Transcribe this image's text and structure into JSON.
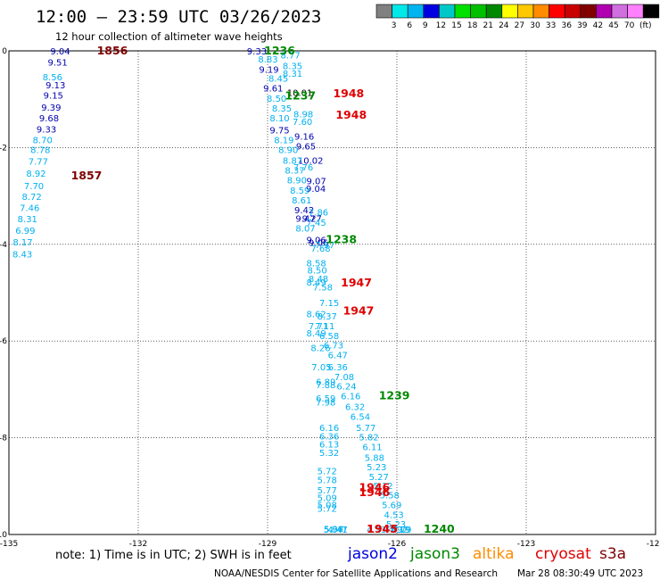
{
  "header": {
    "title": "12:00 — 23:59 UTC 03/26/2023",
    "subtitle": "12 hour collection of altimeter wave heights"
  },
  "colorbar": {
    "unit": "(ft)",
    "labels": [
      "3",
      "6",
      "9",
      "12",
      "15",
      "18",
      "21",
      "24",
      "27",
      "30",
      "33",
      "36",
      "39",
      "42",
      "45",
      "70"
    ],
    "colors": [
      "#808080",
      "#00e8e8",
      "#00b4f0",
      "#0000e0",
      "#00c8c8",
      "#00e000",
      "#00c000",
      "#008800",
      "#ffff00",
      "#ffc800",
      "#ff8c00",
      "#ff0000",
      "#c80000",
      "#800000",
      "#b000b0",
      "#d070e0",
      "#ff80ff",
      "#000000"
    ]
  },
  "chart_data": {
    "type": "scatter",
    "xlabel": "",
    "ylabel": "",
    "xlim": [
      -135,
      -120
    ],
    "ylim": [
      -10,
      0
    ],
    "x_ticks": [
      "-135",
      "-132",
      "-129",
      "-126",
      "-123",
      "-120"
    ],
    "y_ticks": [
      "0",
      "-2",
      "-4",
      "-6",
      "-8",
      "-10"
    ],
    "grid": true,
    "series": [
      {
        "name": "jason2",
        "points": [
          {
            "x": -134.04,
            "y": -0.0,
            "label": "9.04",
            "color": "#0000b0"
          },
          {
            "x": -134.1,
            "y": -0.25,
            "label": "9.51",
            "color": "#0000b0"
          },
          {
            "x": -134.15,
            "y": -0.72,
            "label": "9.13",
            "color": "#0000b0"
          },
          {
            "x": -134.2,
            "y": -0.93,
            "label": "9.15",
            "color": "#0000b0"
          },
          {
            "x": -134.25,
            "y": -1.18,
            "label": "9.39",
            "color": "#0000b0"
          },
          {
            "x": -134.3,
            "y": -1.4,
            "label": "9.68",
            "color": "#0000b0"
          },
          {
            "x": -134.36,
            "y": -1.63,
            "label": "9.33",
            "color": "#0000b0"
          },
          {
            "x": -129.48,
            "y": -0.0,
            "label": "9.33",
            "color": "#0000b0"
          },
          {
            "x": -129.2,
            "y": -0.4,
            "label": "9.19",
            "color": "#0000b0"
          },
          {
            "x": -129.1,
            "y": -0.78,
            "label": "9.61",
            "color": "#0000b0"
          },
          {
            "x": -128.95,
            "y": -1.65,
            "label": "9.75",
            "color": "#0000b0"
          },
          {
            "x": -128.38,
            "y": -1.78,
            "label": "9.16",
            "color": "#0000b0"
          },
          {
            "x": -128.34,
            "y": -1.98,
            "label": "9.65",
            "color": "#0000b0"
          },
          {
            "x": -128.3,
            "y": -2.28,
            "label": "10.02",
            "color": "#0000b0"
          },
          {
            "x": -128.1,
            "y": -2.7,
            "label": "9.07",
            "color": "#0000b0"
          },
          {
            "x": -128.11,
            "y": -2.86,
            "label": "9.04",
            "color": "#0000b0"
          },
          {
            "x": -128.38,
            "y": -3.3,
            "label": "9.42",
            "color": "#0000b0"
          },
          {
            "x": -128.35,
            "y": -3.48,
            "label": "9.47",
            "color": "#0000b0"
          },
          {
            "x": -128.2,
            "y": -3.48,
            "label": "9.27",
            "color": "#0000b0"
          },
          {
            "x": -128.1,
            "y": -3.92,
            "label": "9.06",
            "color": "#0000b0"
          },
          {
            "x": -128.05,
            "y": -3.98,
            "label": "9.06",
            "color": "#0000b0"
          },
          {
            "x": -128.55,
            "y": -0.88,
            "label": "10.01",
            "color": "#000000"
          }
        ]
      },
      {
        "name": "jason3",
        "points": [
          {
            "x": -134.22,
            "y": -0.55,
            "label": "8.56",
            "color": "#00b0f0"
          },
          {
            "x": -134.45,
            "y": -1.85,
            "label": "8.70",
            "color": "#00b0f0"
          },
          {
            "x": -134.5,
            "y": -2.06,
            "label": "8.78",
            "color": "#00b0f0"
          },
          {
            "x": -134.55,
            "y": -2.3,
            "label": "7.77",
            "color": "#00b0f0"
          },
          {
            "x": -134.6,
            "y": -2.55,
            "label": "8.92",
            "color": "#00b0f0"
          },
          {
            "x": -134.65,
            "y": -2.8,
            "label": "7.70",
            "color": "#00b0f0"
          },
          {
            "x": -134.7,
            "y": -3.03,
            "label": "8.72",
            "color": "#00b0f0"
          },
          {
            "x": -134.75,
            "y": -3.26,
            "label": "7.46",
            "color": "#00b0f0"
          },
          {
            "x": -134.8,
            "y": -3.49,
            "label": "8.31",
            "color": "#00b0f0"
          },
          {
            "x": -134.85,
            "y": -3.73,
            "label": "6.99",
            "color": "#00b0f0"
          },
          {
            "x": -134.91,
            "y": -3.97,
            "label": "8.17",
            "color": "#00b0f0"
          },
          {
            "x": -134.95,
            "y": -4.22,
            "label": "8.43",
            "color": "#00b0f0"
          },
          {
            "x": -129.22,
            "y": -0.18,
            "label": "8.83",
            "color": "#00b0f0"
          },
          {
            "x": -128.98,
            "y": -0.58,
            "label": "8.45",
            "color": "#00b0f0"
          },
          {
            "x": -129.02,
            "y": -1.0,
            "label": "8.50",
            "color": "#00b0f0"
          },
          {
            "x": -128.9,
            "y": -1.2,
            "label": "8.35",
            "color": "#00b0f0"
          },
          {
            "x": -128.95,
            "y": -1.4,
            "label": "8.10",
            "color": "#00b0f0"
          },
          {
            "x": -128.85,
            "y": -1.85,
            "label": "8.19",
            "color": "#00b0f0"
          },
          {
            "x": -128.75,
            "y": -2.06,
            "label": "8.90",
            "color": "#00b0f0"
          },
          {
            "x": -128.65,
            "y": -2.28,
            "label": "8.87",
            "color": "#00b0f0"
          },
          {
            "x": -128.6,
            "y": -2.48,
            "label": "8.37",
            "color": "#00b0f0"
          },
          {
            "x": -128.4,
            "y": -2.42,
            "label": "7.76",
            "color": "#00b0f0"
          },
          {
            "x": -128.55,
            "y": -2.68,
            "label": "8.90",
            "color": "#00b0f0"
          },
          {
            "x": -128.48,
            "y": -2.9,
            "label": "8.59",
            "color": "#00b0f0"
          },
          {
            "x": -128.44,
            "y": -3.1,
            "label": "8.61",
            "color": "#00b0f0"
          },
          {
            "x": -128.05,
            "y": -3.35,
            "label": "7.86",
            "color": "#00b0f0"
          },
          {
            "x": -128.1,
            "y": -3.56,
            "label": "7.45",
            "color": "#00b0f0"
          },
          {
            "x": -128.35,
            "y": -3.68,
            "label": "8.07",
            "color": "#00b0f0"
          },
          {
            "x": -127.9,
            "y": -4.02,
            "label": "7.97",
            "color": "#00b0f0"
          },
          {
            "x": -128.0,
            "y": -4.1,
            "label": "7.68",
            "color": "#00b0f0"
          },
          {
            "x": -128.1,
            "y": -4.4,
            "label": "8.58",
            "color": "#00b0f0"
          },
          {
            "x": -128.08,
            "y": -4.55,
            "label": "8.50",
            "color": "#00b0f0"
          },
          {
            "x": -128.05,
            "y": -4.72,
            "label": "8.48",
            "color": "#00b0f0"
          },
          {
            "x": -128.1,
            "y": -4.8,
            "label": "8.49",
            "color": "#00b0f0"
          },
          {
            "x": -127.95,
            "y": -4.9,
            "label": "7.58",
            "color": "#00b0f0"
          },
          {
            "x": -127.8,
            "y": -5.22,
            "label": "7.15",
            "color": "#00b0f0"
          },
          {
            "x": -128.1,
            "y": -5.45,
            "label": "8.62",
            "color": "#00b0f0"
          },
          {
            "x": -127.85,
            "y": -5.5,
            "label": "8.37",
            "color": "#00b0f0"
          },
          {
            "x": -128.05,
            "y": -5.7,
            "label": "7.71",
            "color": "#00b0f0"
          },
          {
            "x": -127.9,
            "y": -5.7,
            "label": "7.11",
            "color": "#00b0f0"
          },
          {
            "x": -128.1,
            "y": -5.85,
            "label": "8.49",
            "color": "#00b0f0"
          },
          {
            "x": -127.8,
            "y": -5.9,
            "label": "6.58",
            "color": "#00b0f0"
          },
          {
            "x": -127.7,
            "y": -6.1,
            "label": "6.73",
            "color": "#00b0f0"
          },
          {
            "x": -128.0,
            "y": -6.15,
            "label": "8.26",
            "color": "#00b0f0"
          },
          {
            "x": -127.6,
            "y": -6.3,
            "label": "6.47",
            "color": "#00b0f0"
          },
          {
            "x": -127.98,
            "y": -6.55,
            "label": "7.05",
            "color": "#00b0f0"
          },
          {
            "x": -127.6,
            "y": -6.55,
            "label": "6.36",
            "color": "#00b0f0"
          },
          {
            "x": -127.45,
            "y": -6.75,
            "label": "7.08",
            "color": "#00b0f0"
          },
          {
            "x": -127.88,
            "y": -6.85,
            "label": "6.89",
            "color": "#00b0f0"
          },
          {
            "x": -127.88,
            "y": -6.92,
            "label": "7.88",
            "color": "#00b0f0"
          },
          {
            "x": -127.4,
            "y": -6.95,
            "label": "6.24",
            "color": "#00b0f0"
          },
          {
            "x": -127.88,
            "y": -7.2,
            "label": "6.59",
            "color": "#00b0f0"
          },
          {
            "x": -127.88,
            "y": -7.28,
            "label": "7.98",
            "color": "#00b0f0"
          },
          {
            "x": -127.3,
            "y": -7.15,
            "label": "6.16",
            "color": "#00b0f0"
          },
          {
            "x": -127.2,
            "y": -7.37,
            "label": "6.32",
            "color": "#00b0f0"
          },
          {
            "x": -127.08,
            "y": -7.57,
            "label": "6.54",
            "color": "#00b0f0"
          },
          {
            "x": -127.8,
            "y": -7.8,
            "label": "6.16",
            "color": "#00b0f0"
          },
          {
            "x": -127.8,
            "y": -7.98,
            "label": "6.36",
            "color": "#00b0f0"
          },
          {
            "x": -127.8,
            "y": -8.15,
            "label": "6.13",
            "color": "#00b0f0"
          },
          {
            "x": -127.8,
            "y": -8.32,
            "label": "5.32",
            "color": "#00b0f0"
          },
          {
            "x": -126.95,
            "y": -7.8,
            "label": "5.77",
            "color": "#00b0f0"
          },
          {
            "x": -126.88,
            "y": -8.0,
            "label": "5.82",
            "color": "#00b0f0"
          },
          {
            "x": -126.8,
            "y": -8.2,
            "label": "6.11",
            "color": "#00b0f0"
          },
          {
            "x": -126.75,
            "y": -8.42,
            "label": "5.88",
            "color": "#00b0f0"
          },
          {
            "x": -126.7,
            "y": -8.62,
            "label": "5.23",
            "color": "#00b0f0"
          },
          {
            "x": -127.85,
            "y": -8.7,
            "label": "5.72",
            "color": "#00b0f0"
          },
          {
            "x": -126.65,
            "y": -8.82,
            "label": "5.27",
            "color": "#00b0f0"
          },
          {
            "x": -127.85,
            "y": -8.88,
            "label": "5.78",
            "color": "#00b0f0"
          },
          {
            "x": -126.55,
            "y": -9.0,
            "label": "5.12",
            "color": "#00b0f0"
          },
          {
            "x": -127.85,
            "y": -9.1,
            "label": "5.77",
            "color": "#00b0f0"
          },
          {
            "x": -127.85,
            "y": -9.25,
            "label": "5.09",
            "color": "#00b0f0"
          },
          {
            "x": -126.4,
            "y": -9.2,
            "label": "5.58",
            "color": "#00b0f0"
          },
          {
            "x": -127.85,
            "y": -9.4,
            "label": "5.08",
            "color": "#00b0f0"
          },
          {
            "x": -127.85,
            "y": -9.47,
            "label": "5.72",
            "color": "#00b0f0"
          },
          {
            "x": -126.35,
            "y": -9.4,
            "label": "5.69",
            "color": "#00b0f0"
          },
          {
            "x": -126.3,
            "y": -9.6,
            "label": "4.53",
            "color": "#00b0f0"
          },
          {
            "x": -126.25,
            "y": -9.8,
            "label": "5.23",
            "color": "#00b0f0"
          },
          {
            "x": -127.7,
            "y": -9.9,
            "label": "5.36",
            "color": "#00b0f0"
          },
          {
            "x": -127.7,
            "y": -10.02,
            "label": "5.97",
            "color": "#00b0f0"
          },
          {
            "x": -126.2,
            "y": -10.02,
            "label": "4.92",
            "color": "#00b0f0"
          },
          {
            "x": -126.12,
            "y": -10.22,
            "label": "4.79",
            "color": "#00b0f0"
          },
          {
            "x": -126.15,
            "y": -10.42,
            "label": "5.19",
            "color": "#00b0f0"
          },
          {
            "x": -127.6,
            "y": -10.52,
            "label": "4.41",
            "color": "#00b0f0"
          },
          {
            "x": -127.6,
            "y": -10.58,
            "label": "4.47",
            "color": "#00b0f0"
          },
          {
            "x": -126.7,
            "y": -10.52,
            "label": "4.13",
            "color": "#00b0f0"
          },
          {
            "x": -128.7,
            "y": -0.1,
            "label": "8.77",
            "color": "#00b0f0"
          },
          {
            "x": -128.65,
            "y": -0.32,
            "label": "8.35",
            "color": "#00b0f0"
          },
          {
            "x": -128.65,
            "y": -0.48,
            "label": "8.31",
            "color": "#00b0f0"
          },
          {
            "x": -128.4,
            "y": -1.32,
            "label": "8.98",
            "color": "#00b0f0"
          },
          {
            "x": -128.42,
            "y": -1.48,
            "label": "7.60",
            "color": "#00b0f0"
          }
        ]
      },
      {
        "name": "altika",
        "points": []
      },
      {
        "name": "cryosat",
        "points": [
          {
            "x": -132.96,
            "y": 0.0,
            "label": "1856",
            "color": "#800000"
          },
          {
            "x": -133.56,
            "y": -2.6,
            "label": "1857",
            "color": "#800000"
          },
          {
            "x": -127.48,
            "y": -0.9,
            "label": "1948",
            "color": "#e00000"
          },
          {
            "x": -127.42,
            "y": -1.35,
            "label": "1948",
            "color": "#e00000"
          },
          {
            "x": -127.3,
            "y": -4.82,
            "label": "1947",
            "color": "#e00000"
          },
          {
            "x": -127.25,
            "y": -5.4,
            "label": "1947",
            "color": "#e00000"
          },
          {
            "x": -126.88,
            "y": -9.05,
            "label": "1946",
            "color": "#e00000"
          },
          {
            "x": -126.88,
            "y": -9.15,
            "label": "1946",
            "color": "#e00000"
          },
          {
            "x": -126.7,
            "y": -10.45,
            "label": "1945",
            "color": "#e00000"
          },
          {
            "x": -126.7,
            "y": -10.55,
            "label": "1945",
            "color": "#e00000"
          }
        ]
      },
      {
        "name": "s3a",
        "points": [
          {
            "x": -129.08,
            "y": 0.0,
            "label": "1236",
            "color": "#008800"
          },
          {
            "x": -128.6,
            "y": -0.95,
            "label": "1237",
            "color": "#008800"
          },
          {
            "x": -127.65,
            "y": -3.92,
            "label": "1238",
            "color": "#008800"
          },
          {
            "x": -126.42,
            "y": -7.15,
            "label": "1239",
            "color": "#008800"
          },
          {
            "x": -125.38,
            "y": -10.35,
            "label": "1240",
            "color": "#008800"
          }
        ]
      }
    ]
  },
  "footer": {
    "note": "note:  1) Time is in UTC; 2) SWH is in feet",
    "legend": [
      {
        "name": "jason2",
        "color": "#0000e0"
      },
      {
        "name": "jason3",
        "color": "#008800"
      },
      {
        "name": "altika",
        "color": "#ff8c00"
      },
      {
        "name": "cryosat",
        "color": "#e00000"
      },
      {
        "name": "s3a",
        "color": "#800000"
      }
    ],
    "credit": "NOAA/NESDIS Center for Satellite Applications and Research",
    "timestamp": "Mar 28 08:30:49 UTC 2023"
  }
}
